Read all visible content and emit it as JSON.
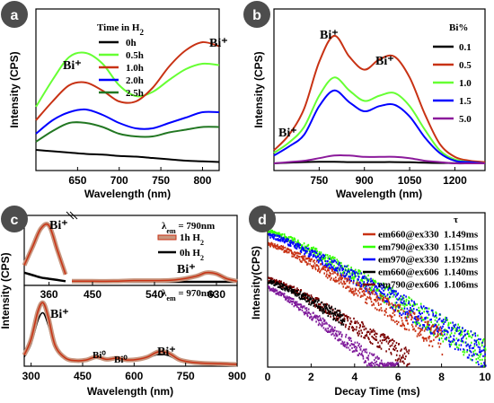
{
  "chart_data": [
    {
      "panel": "a",
      "type": "line",
      "xlabel": "Wavelength (nm)",
      "ylabel": "Intensity (CPS)",
      "xlim": [
        600,
        820
      ],
      "xticks": [
        650,
        700,
        750,
        800
      ],
      "legend_title": "Time in H2",
      "legend_position": "top",
      "series": [
        {
          "name": "0h",
          "color": "#000000",
          "x": [
            600,
            620,
            640,
            660,
            680,
            700,
            720,
            740,
            760,
            780,
            800,
            820
          ],
          "y": [
            0.1,
            0.09,
            0.08,
            0.07,
            0.065,
            0.055,
            0.05,
            0.04,
            0.03,
            0.02,
            0.015,
            0.01
          ]
        },
        {
          "name": "0.5h",
          "color": "#66ff33",
          "x": [
            600,
            620,
            640,
            660,
            680,
            700,
            720,
            740,
            760,
            780,
            800,
            820
          ],
          "y": [
            0.42,
            0.62,
            0.79,
            0.82,
            0.74,
            0.58,
            0.5,
            0.53,
            0.62,
            0.7,
            0.74,
            0.73
          ]
        },
        {
          "name": "1.0h",
          "color": "#c83214",
          "x": [
            600,
            620,
            640,
            660,
            680,
            700,
            720,
            740,
            760,
            780,
            800,
            820
          ],
          "y": [
            0.32,
            0.46,
            0.58,
            0.6,
            0.54,
            0.46,
            0.46,
            0.56,
            0.72,
            0.84,
            0.9,
            0.87
          ]
        },
        {
          "name": "2.0h",
          "color": "#0000ff",
          "x": [
            600,
            620,
            640,
            660,
            680,
            700,
            720,
            740,
            760,
            780,
            800,
            820
          ],
          "y": [
            0.22,
            0.32,
            0.38,
            0.4,
            0.36,
            0.3,
            0.26,
            0.26,
            0.3,
            0.34,
            0.38,
            0.38
          ]
        },
        {
          "name": "2.5h",
          "color": "#227722",
          "x": [
            600,
            620,
            640,
            660,
            680,
            700,
            720,
            740,
            760,
            780,
            800,
            820
          ],
          "y": [
            0.16,
            0.24,
            0.3,
            0.3,
            0.27,
            0.22,
            0.2,
            0.2,
            0.23,
            0.25,
            0.27,
            0.27
          ]
        }
      ],
      "annotations": [
        "Bi⁺",
        "Bi⁺"
      ]
    },
    {
      "panel": "b",
      "type": "line",
      "xlabel": "Wavelength (nm)",
      "ylabel": "Intensity (CPS)",
      "xlim": [
        600,
        1300
      ],
      "xticks": [
        750,
        900,
        1050,
        1200
      ],
      "legend_title": "Bi%",
      "legend_position": "right",
      "series": [
        {
          "name": "0.1",
          "color": "#000000",
          "x": [
            600,
            650,
            700,
            750,
            800,
            850,
            900,
            950,
            1000,
            1050,
            1100,
            1150,
            1200,
            1250,
            1300
          ],
          "y": [
            0.0,
            0.005,
            0.01,
            0.012,
            0.012,
            0.01,
            0.01,
            0.01,
            0.01,
            0.008,
            0.005,
            0.003,
            0.002,
            0.001,
            0.0
          ]
        },
        {
          "name": "0.5",
          "color": "#c83214",
          "x": [
            600,
            650,
            700,
            750,
            800,
            850,
            900,
            950,
            1000,
            1050,
            1100,
            1150,
            1200,
            1250,
            1300
          ],
          "y": [
            0.1,
            0.22,
            0.42,
            0.78,
            0.98,
            0.82,
            0.72,
            0.8,
            0.82,
            0.66,
            0.38,
            0.15,
            0.05,
            0.02,
            0.01
          ]
        },
        {
          "name": "1.0",
          "color": "#66ff33",
          "x": [
            600,
            650,
            700,
            750,
            800,
            850,
            900,
            950,
            1000,
            1050,
            1100,
            1150,
            1200,
            1250,
            1300
          ],
          "y": [
            0.08,
            0.16,
            0.28,
            0.52,
            0.66,
            0.56,
            0.48,
            0.52,
            0.54,
            0.44,
            0.26,
            0.1,
            0.03,
            0.01,
            0.0
          ]
        },
        {
          "name": "1.5",
          "color": "#0000ff",
          "x": [
            600,
            650,
            700,
            750,
            800,
            850,
            900,
            950,
            1000,
            1050,
            1100,
            1150,
            1200,
            1250,
            1300
          ],
          "y": [
            0.06,
            0.13,
            0.22,
            0.44,
            0.56,
            0.47,
            0.4,
            0.44,
            0.45,
            0.36,
            0.2,
            0.08,
            0.02,
            0.01,
            0.0
          ]
        },
        {
          "name": "5.0",
          "color": "#8b1a9b",
          "x": [
            600,
            650,
            700,
            750,
            800,
            850,
            900,
            950,
            1000,
            1050,
            1100,
            1150,
            1200,
            1250,
            1300
          ],
          "y": [
            0.0,
            0.01,
            0.02,
            0.04,
            0.06,
            0.06,
            0.05,
            0.05,
            0.05,
            0.04,
            0.02,
            0.01,
            0.0,
            0.0,
            0.0
          ]
        }
      ],
      "annotations": [
        "Bi⁺",
        "Bi⁺",
        "Bi⁺"
      ]
    },
    {
      "panel": "c-top",
      "type": "line",
      "ylabel": "Intensity (CPS)",
      "x_breaks": [
        "330-380",
        "420-660"
      ],
      "xticks": [
        360,
        450,
        540,
        630
      ],
      "legend_title": "λem = 790nm",
      "legend_position": "top-right",
      "series": [
        {
          "name": "1h H2",
          "color": "#c83214",
          "x": [
            330,
            340,
            350,
            360,
            370,
            380,
            420,
            450,
            480,
            510,
            540,
            570,
            600,
            615,
            630,
            645,
            660
          ],
          "y": [
            0.3,
            0.6,
            0.9,
            0.95,
            0.55,
            0.15,
            0.04,
            0.04,
            0.04,
            0.05,
            0.05,
            0.06,
            0.12,
            0.18,
            0.16,
            0.08,
            0.04
          ]
        },
        {
          "name": "0h H2",
          "color": "#000000",
          "x": [
            330,
            340,
            350,
            360,
            370,
            380,
            420,
            450,
            480,
            510,
            540,
            570,
            600,
            615,
            630,
            645,
            660
          ],
          "y": [
            0.18,
            0.14,
            0.1,
            0.08,
            0.06,
            0.04,
            0.03,
            0.03,
            0.03,
            0.03,
            0.03,
            0.03,
            0.03,
            0.03,
            0.03,
            0.03,
            0.03
          ]
        }
      ],
      "annotations": [
        "Bi⁺",
        "Bi⁺"
      ]
    },
    {
      "panel": "c-bottom",
      "type": "line",
      "xlabel": "Wavelength (nm)",
      "xlim": [
        280,
        900
      ],
      "xticks": [
        300,
        450,
        600,
        750,
        900
      ],
      "legend_title": "λem = 970nm",
      "series": [
        {
          "name": "1h H2",
          "color": "#c83214",
          "x": [
            280,
            300,
            320,
            335,
            350,
            370,
            400,
            430,
            460,
            490,
            520,
            550,
            580,
            610,
            640,
            670,
            700,
            730,
            760,
            800,
            850,
            900
          ],
          "y": [
            0.15,
            0.4,
            0.85,
            0.98,
            0.75,
            0.3,
            0.1,
            0.06,
            0.07,
            0.12,
            0.08,
            0.1,
            0.07,
            0.08,
            0.12,
            0.2,
            0.18,
            0.08,
            0.04,
            0.02,
            0.01,
            0.0
          ]
        },
        {
          "name": "0h H2",
          "color": "#000000",
          "x": [
            280,
            300,
            320,
            335,
            350,
            370,
            400,
            430,
            460,
            490,
            520,
            550,
            580,
            610,
            640,
            670,
            700,
            730,
            760,
            800,
            850,
            900
          ],
          "y": [
            0.12,
            0.32,
            0.7,
            0.82,
            0.62,
            0.25,
            0.08,
            0.05,
            0.06,
            0.1,
            0.07,
            0.08,
            0.06,
            0.07,
            0.1,
            0.16,
            0.14,
            0.06,
            0.03,
            0.02,
            0.01,
            0.0
          ]
        }
      ],
      "annotations": [
        "Bi⁺",
        "Bi⁰",
        "Bi⁰",
        "Bi⁺"
      ]
    },
    {
      "panel": "d",
      "type": "scatter",
      "xlabel": "Decay Time (ms)",
      "ylabel": "Intensity(CPS)",
      "xlim": [
        0,
        10
      ],
      "xticks": [
        0,
        2,
        4,
        6,
        8,
        10
      ],
      "yscale": "log",
      "legend_title": "τ",
      "legend_position": "right",
      "series": [
        {
          "name": "em660@ex330",
          "tau": "1.149ms",
          "color": "#c83214",
          "tau_ms": 1.149,
          "x_max": 8.0,
          "a": 0.9
        },
        {
          "name": "em790@ex330",
          "tau": "1.151ms",
          "color": "#33ff00",
          "tau_ms": 1.151,
          "x_max": 10.0,
          "a": 1.0
        },
        {
          "name": "em970@ex330",
          "tau": "1.192ms",
          "color": "#0000ff",
          "tau_ms": 1.192,
          "x_max": 10.0,
          "a": 0.97
        },
        {
          "name": "em660@ex606",
          "tau": "1.140ms",
          "color": "#000000",
          "tau_ms": 1.14,
          "x_max": 3.5,
          "a": 0.6
        },
        {
          "name": "em790@ex606",
          "tau": "1.106ms",
          "color": "#7a0000",
          "tau_ms": 1.106,
          "x_max": 6.5,
          "a": 0.62
        },
        {
          "name": "",
          "color": "#7f1b9b",
          "tau_ms": 0.9,
          "x_max": 6.0,
          "a": 0.55
        }
      ]
    }
  ],
  "panels": {
    "a": {
      "letter": "a",
      "title": "Time in H",
      "title_sub": "2"
    },
    "b": {
      "letter": "b",
      "title": "Bi%"
    },
    "c": {
      "letter": "c",
      "lambda_top": "λ",
      "lambda_top_sub": "em",
      "lambda_top_val": " = 790nm",
      "lambda_bot": "λ",
      "lambda_bot_sub": "em",
      "lambda_bot_val": " = 970nm",
      "leg1": "1h H",
      "leg2": "0h H",
      "sub2": "2"
    },
    "d": {
      "letter": "d",
      "title": "τ"
    }
  }
}
